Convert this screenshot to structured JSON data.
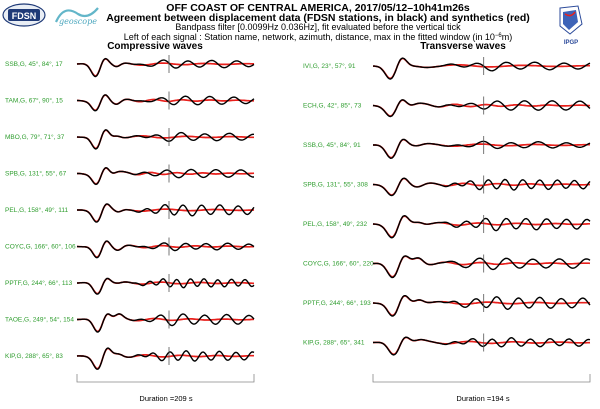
{
  "header": {
    "title": "OFF COAST OF CENTRAL AMERICA, 2017/05/12–10h41m26s",
    "subtitle": "Agreement between displacement data (FDSN stations, in black) and synthetics (red)",
    "filter_line": "Bandpass filter [0.0099Hz 0.036Hz], fit evaluated before the vertical tick",
    "legend_line_prefix": "Left of each signal : Station name, network, azimuth, distance, max in the fitted window (in 10",
    "legend_line_exp": "−6",
    "legend_line_suffix": "m)"
  },
  "logos": {
    "fdsn": "FDSN",
    "geoscope": "geoscope",
    "ipgp": "IPGP"
  },
  "colors": {
    "observed": "#000000",
    "synthetic": "#e8201c",
    "station_label": "#2e9d2e"
  },
  "chart_data": [
    {
      "type": "line",
      "title": "Compressive waves",
      "xlabel": "Duration =209 s",
      "duration_s": 209,
      "series_legend": [
        {
          "name": "observed displacement (FDSN stations)",
          "color": "#000000"
        },
        {
          "name": "synthetic",
          "color": "#e8201c"
        }
      ],
      "traces": [
        {
          "label": "SSB,G, 45°, 84°, 17",
          "station": "SSB",
          "network": "G",
          "azimuth_deg": 45,
          "distance_deg": 84,
          "max_e6m": 17
        },
        {
          "label": "TAM,G, 67°, 90°, 15",
          "station": "TAM",
          "network": "G",
          "azimuth_deg": 67,
          "distance_deg": 90,
          "max_e6m": 15
        },
        {
          "label": "MBO,G, 79°, 71°, 37",
          "station": "MBO",
          "network": "G",
          "azimuth_deg": 79,
          "distance_deg": 71,
          "max_e6m": 37
        },
        {
          "label": "SPB,G, 131°, 55°, 67",
          "station": "SPB",
          "network": "G",
          "azimuth_deg": 131,
          "distance_deg": 55,
          "max_e6m": 67
        },
        {
          "label": "PEL,G, 158°, 49°, 111",
          "station": "PEL",
          "network": "G",
          "azimuth_deg": 158,
          "distance_deg": 49,
          "max_e6m": 111
        },
        {
          "label": "COYC,G, 166°, 60°, 106",
          "station": "COYC",
          "network": "G",
          "azimuth_deg": 166,
          "distance_deg": 60,
          "max_e6m": 106
        },
        {
          "label": "PPTF,G, 244°, 66°, 113",
          "station": "PPTF",
          "network": "G",
          "azimuth_deg": 244,
          "distance_deg": 66,
          "max_e6m": 113
        },
        {
          "label": "TAOE,G, 249°, 54°, 154",
          "station": "TAOE",
          "network": "G",
          "azimuth_deg": 249,
          "distance_deg": 54,
          "max_e6m": 154
        },
        {
          "label": "KIP,G, 288°, 65°, 83",
          "station": "KIP",
          "network": "G",
          "azimuth_deg": 288,
          "distance_deg": 65,
          "max_e6m": 83
        }
      ]
    },
    {
      "type": "line",
      "title": "Transverse waves",
      "xlabel": "Duration =194 s",
      "duration_s": 194,
      "series_legend": [
        {
          "name": "observed displacement (FDSN stations)",
          "color": "#000000"
        },
        {
          "name": "synthetic",
          "color": "#e8201c"
        }
      ],
      "traces": [
        {
          "label": "IVI,G, 23°, 57°, 91",
          "station": "IVI",
          "network": "G",
          "azimuth_deg": 23,
          "distance_deg": 57,
          "max_e6m": 91
        },
        {
          "label": "ECH,G, 42°, 85°, 73",
          "station": "ECH",
          "network": "G",
          "azimuth_deg": 42,
          "distance_deg": 85,
          "max_e6m": 73
        },
        {
          "label": "SSB,G, 45°, 84°, 91",
          "station": "SSB",
          "network": "G",
          "azimuth_deg": 45,
          "distance_deg": 84,
          "max_e6m": 91
        },
        {
          "label": "SPB,G, 131°, 55°, 308",
          "station": "SPB",
          "network": "G",
          "azimuth_deg": 131,
          "distance_deg": 55,
          "max_e6m": 308
        },
        {
          "label": "PEL,G, 158°, 49°, 232",
          "station": "PEL",
          "network": "G",
          "azimuth_deg": 158,
          "distance_deg": 49,
          "max_e6m": 232
        },
        {
          "label": "COYC,G, 166°, 60°, 220",
          "station": "COYC",
          "network": "G",
          "azimuth_deg": 166,
          "distance_deg": 60,
          "max_e6m": 220
        },
        {
          "label": "PPTF,G, 244°, 66°, 193",
          "station": "PPTF",
          "network": "G",
          "azimuth_deg": 244,
          "distance_deg": 66,
          "max_e6m": 193
        },
        {
          "label": "KIP,G, 288°, 65°, 341",
          "station": "KIP",
          "network": "G",
          "azimuth_deg": 288,
          "distance_deg": 65,
          "max_e6m": 341
        }
      ]
    }
  ]
}
